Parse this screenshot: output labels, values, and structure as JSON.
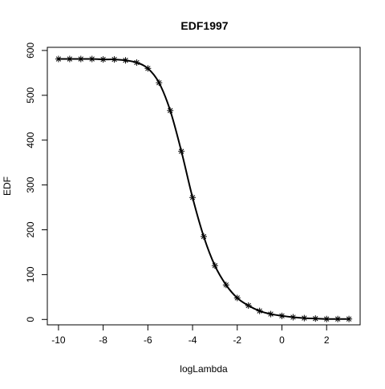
{
  "chart_data": {
    "type": "line",
    "title": "EDF1997",
    "xlabel": "logLambda",
    "ylabel": "EDF",
    "xlim": [
      -10.5,
      3.5
    ],
    "ylim": [
      -12,
      607
    ],
    "x_ticks": [
      -10,
      -8,
      -6,
      -4,
      -2,
      0,
      2
    ],
    "y_ticks": [
      0,
      100,
      200,
      300,
      400,
      500,
      600
    ],
    "x_tick_labels": [
      "-10",
      "-8",
      "-6",
      "-4",
      "-2",
      "0",
      "2"
    ],
    "y_tick_labels": [
      "0",
      "100",
      "200",
      "300",
      "400",
      "500",
      "600"
    ],
    "grid": false,
    "marker": "asterisk",
    "line_color": "#000000",
    "series": [
      {
        "x": [
          -10,
          -9.5,
          -9,
          -8.5,
          -8,
          -7.5,
          -7,
          -6.5,
          -6,
          -5.5,
          -5,
          -4.5,
          -4,
          -3.5,
          -3,
          -2.5,
          -2,
          -1.5,
          -1,
          -0.5,
          0,
          0.5,
          1,
          1.5,
          2,
          2.5,
          3
        ],
        "values": [
          581,
          581,
          581,
          581,
          580,
          580,
          578,
          573,
          560,
          528,
          466,
          375,
          272,
          185,
          120,
          77,
          48,
          31,
          19,
          12,
          8,
          5,
          3,
          2,
          1,
          1,
          1
        ]
      }
    ]
  }
}
